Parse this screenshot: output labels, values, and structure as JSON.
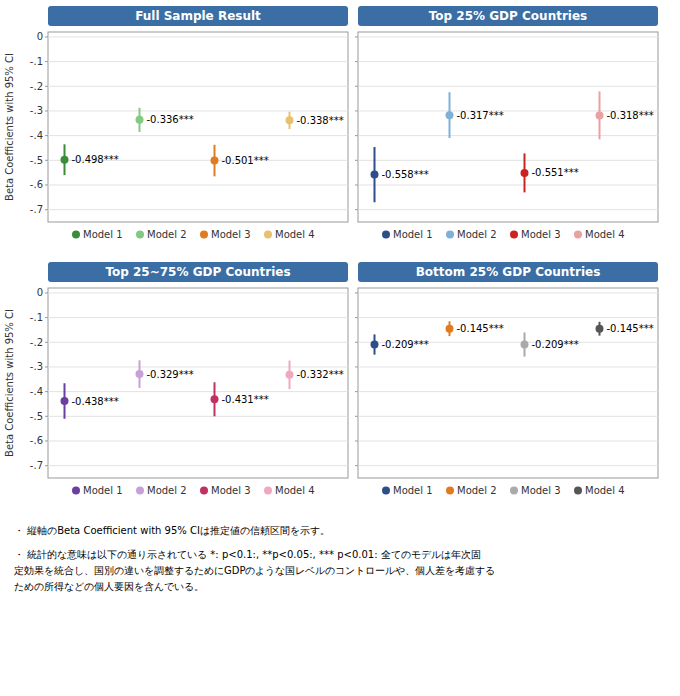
{
  "chart_data": [
    {
      "type": "errorbar",
      "title": "Full Sample Result",
      "ylabel": "Beta Coefficients with 95% CI",
      "ylim": [
        -0.75,
        0.02
      ],
      "yticks": [
        0,
        {
          "value": -0.1,
          "label": "-.1"
        },
        {
          "value": -0.2,
          "label": "-.2"
        },
        {
          "value": -0.3,
          "label": "-.3"
        },
        {
          "value": -0.4,
          "label": "-.4"
        },
        {
          "value": -0.5,
          "label": "-.5"
        },
        {
          "value": -0.6,
          "label": "-.6"
        },
        {
          "value": -0.7,
          "label": "-.7"
        }
      ],
      "grid": true,
      "legend": "bottom",
      "data_labels": true,
      "tick_labels": "y",
      "series": [
        {
          "name": "Model 1",
          "color": "#3a8c3a",
          "values": [
            -0.498
          ],
          "ci_low": [
            -0.56
          ],
          "ci_high": [
            -0.435
          ],
          "value_labels": [
            "-0.498***"
          ]
        },
        {
          "name": "Model 2",
          "color": "#82c982",
          "values": [
            -0.336
          ],
          "ci_low": [
            -0.385
          ],
          "ci_high": [
            -0.287
          ],
          "value_labels": [
            "-0.336***"
          ]
        },
        {
          "name": "Model 3",
          "color": "#e07b20",
          "values": [
            -0.501
          ],
          "ci_low": [
            -0.565
          ],
          "ci_high": [
            -0.437
          ],
          "value_labels": [
            "-0.501***"
          ]
        },
        {
          "name": "Model 4",
          "color": "#e8c070",
          "values": [
            -0.338
          ],
          "ci_low": [
            -0.373
          ],
          "ci_high": [
            -0.303
          ],
          "value_labels": [
            "-0.338***"
          ]
        }
      ]
    },
    {
      "type": "errorbar",
      "title": "Top 25% GDP Countries",
      "ylim": [
        -0.75,
        0.02
      ],
      "yticks": [
        0,
        -0.1,
        -0.2,
        -0.3,
        -0.4,
        -0.5,
        -0.6,
        -0.7
      ],
      "grid": true,
      "legend": "bottom",
      "data_labels": true,
      "tick_labels": false,
      "series": [
        {
          "name": "Model 1",
          "color": "#2c4f8c",
          "values": [
            -0.558
          ],
          "ci_low": [
            -0.67
          ],
          "ci_high": [
            -0.446
          ],
          "value_labels": [
            "-0.558***"
          ]
        },
        {
          "name": "Model 2",
          "color": "#7fb0d8",
          "values": [
            -0.317
          ],
          "ci_low": [
            -0.41
          ],
          "ci_high": [
            -0.224
          ],
          "value_labels": [
            "-0.317***"
          ]
        },
        {
          "name": "Model 3",
          "color": "#cc2222",
          "values": [
            -0.551
          ],
          "ci_low": [
            -0.63
          ],
          "ci_high": [
            -0.472
          ],
          "value_labels": [
            "-0.551***"
          ]
        },
        {
          "name": "Model 4",
          "color": "#e8a0a0",
          "values": [
            -0.318
          ],
          "ci_low": [
            -0.415
          ],
          "ci_high": [
            -0.221
          ],
          "value_labels": [
            "-0.318***"
          ]
        }
      ]
    },
    {
      "type": "errorbar",
      "title": "Top 25~75% GDP Countries",
      "ylabel": "Beta Coefficients with 95% CI",
      "ylim": [
        -0.75,
        0.02
      ],
      "yticks": [
        0,
        {
          "value": -0.1,
          "label": "-.1"
        },
        {
          "value": -0.2,
          "label": "-.2"
        },
        {
          "value": -0.3,
          "label": "-.3"
        },
        {
          "value": -0.4,
          "label": "-.4"
        },
        {
          "value": -0.5,
          "label": "-.5"
        },
        {
          "value": -0.6,
          "label": "-.6"
        },
        {
          "value": -0.7,
          "label": "-.7"
        }
      ],
      "grid": true,
      "legend": "bottom",
      "data_labels": true,
      "tick_labels": "y",
      "series": [
        {
          "name": "Model 1",
          "color": "#6b3fa0",
          "values": [
            -0.438
          ],
          "ci_low": [
            -0.51
          ],
          "ci_high": [
            -0.366
          ],
          "value_labels": [
            "-0.438***"
          ]
        },
        {
          "name": "Model 2",
          "color": "#c8a0d8",
          "values": [
            -0.329
          ],
          "ci_low": [
            -0.385
          ],
          "ci_high": [
            -0.273
          ],
          "value_labels": [
            "-0.329***"
          ]
        },
        {
          "name": "Model 3",
          "color": "#c03060",
          "values": [
            -0.431
          ],
          "ci_low": [
            -0.5
          ],
          "ci_high": [
            -0.362
          ],
          "value_labels": [
            "-0.431***"
          ]
        },
        {
          "name": "Model 4",
          "color": "#f0a8c0",
          "values": [
            -0.332
          ],
          "ci_low": [
            -0.39
          ],
          "ci_high": [
            -0.274
          ],
          "value_labels": [
            "-0.332***"
          ]
        }
      ]
    },
    {
      "type": "errorbar",
      "title": "Bottom 25% GDP Countries",
      "ylim": [
        -0.75,
        0.02
      ],
      "yticks": [
        0,
        -0.1,
        -0.2,
        -0.3,
        -0.4,
        -0.5,
        -0.6,
        -0.7
      ],
      "grid": true,
      "legend": "bottom",
      "data_labels": true,
      "tick_labels": false,
      "series": [
        {
          "name": "Model 1",
          "color": "#2c4f8c",
          "values": [
            -0.209
          ],
          "ci_low": [
            -0.25
          ],
          "ci_high": [
            -0.168
          ],
          "value_labels": [
            "-0.209***"
          ]
        },
        {
          "name": "Model 2",
          "color": "#e07b20",
          "values": [
            -0.145
          ],
          "ci_low": [
            -0.175
          ],
          "ci_high": [
            -0.115
          ],
          "value_labels": [
            "-0.145***"
          ]
        },
        {
          "name": "Model 3",
          "color": "#aaaaaa",
          "values": [
            -0.209
          ],
          "ci_low": [
            -0.258
          ],
          "ci_high": [
            -0.16
          ],
          "value_labels": [
            "-0.209***"
          ]
        },
        {
          "name": "Model 4",
          "color": "#555555",
          "values": [
            -0.145
          ],
          "ci_low": [
            -0.173
          ],
          "ci_high": [
            -0.117
          ],
          "value_labels": [
            "-0.145***"
          ]
        }
      ]
    }
  ],
  "footnotes": [
    "・ 縦軸のBeta Coefficient with 95% CIは推定値の信頼区間を示す。",
    "・ 統計的な意味は以下の通り示されている *: p<0.1:, **p<0.05:, *** p<0.01: 全てのモデルは年次固\n定効果を統合し、国別の違いを調整するためにGDPのような国レベルのコントロールや、個人差を考慮する\nための所得などの個人要因を含んでいる。"
  ]
}
